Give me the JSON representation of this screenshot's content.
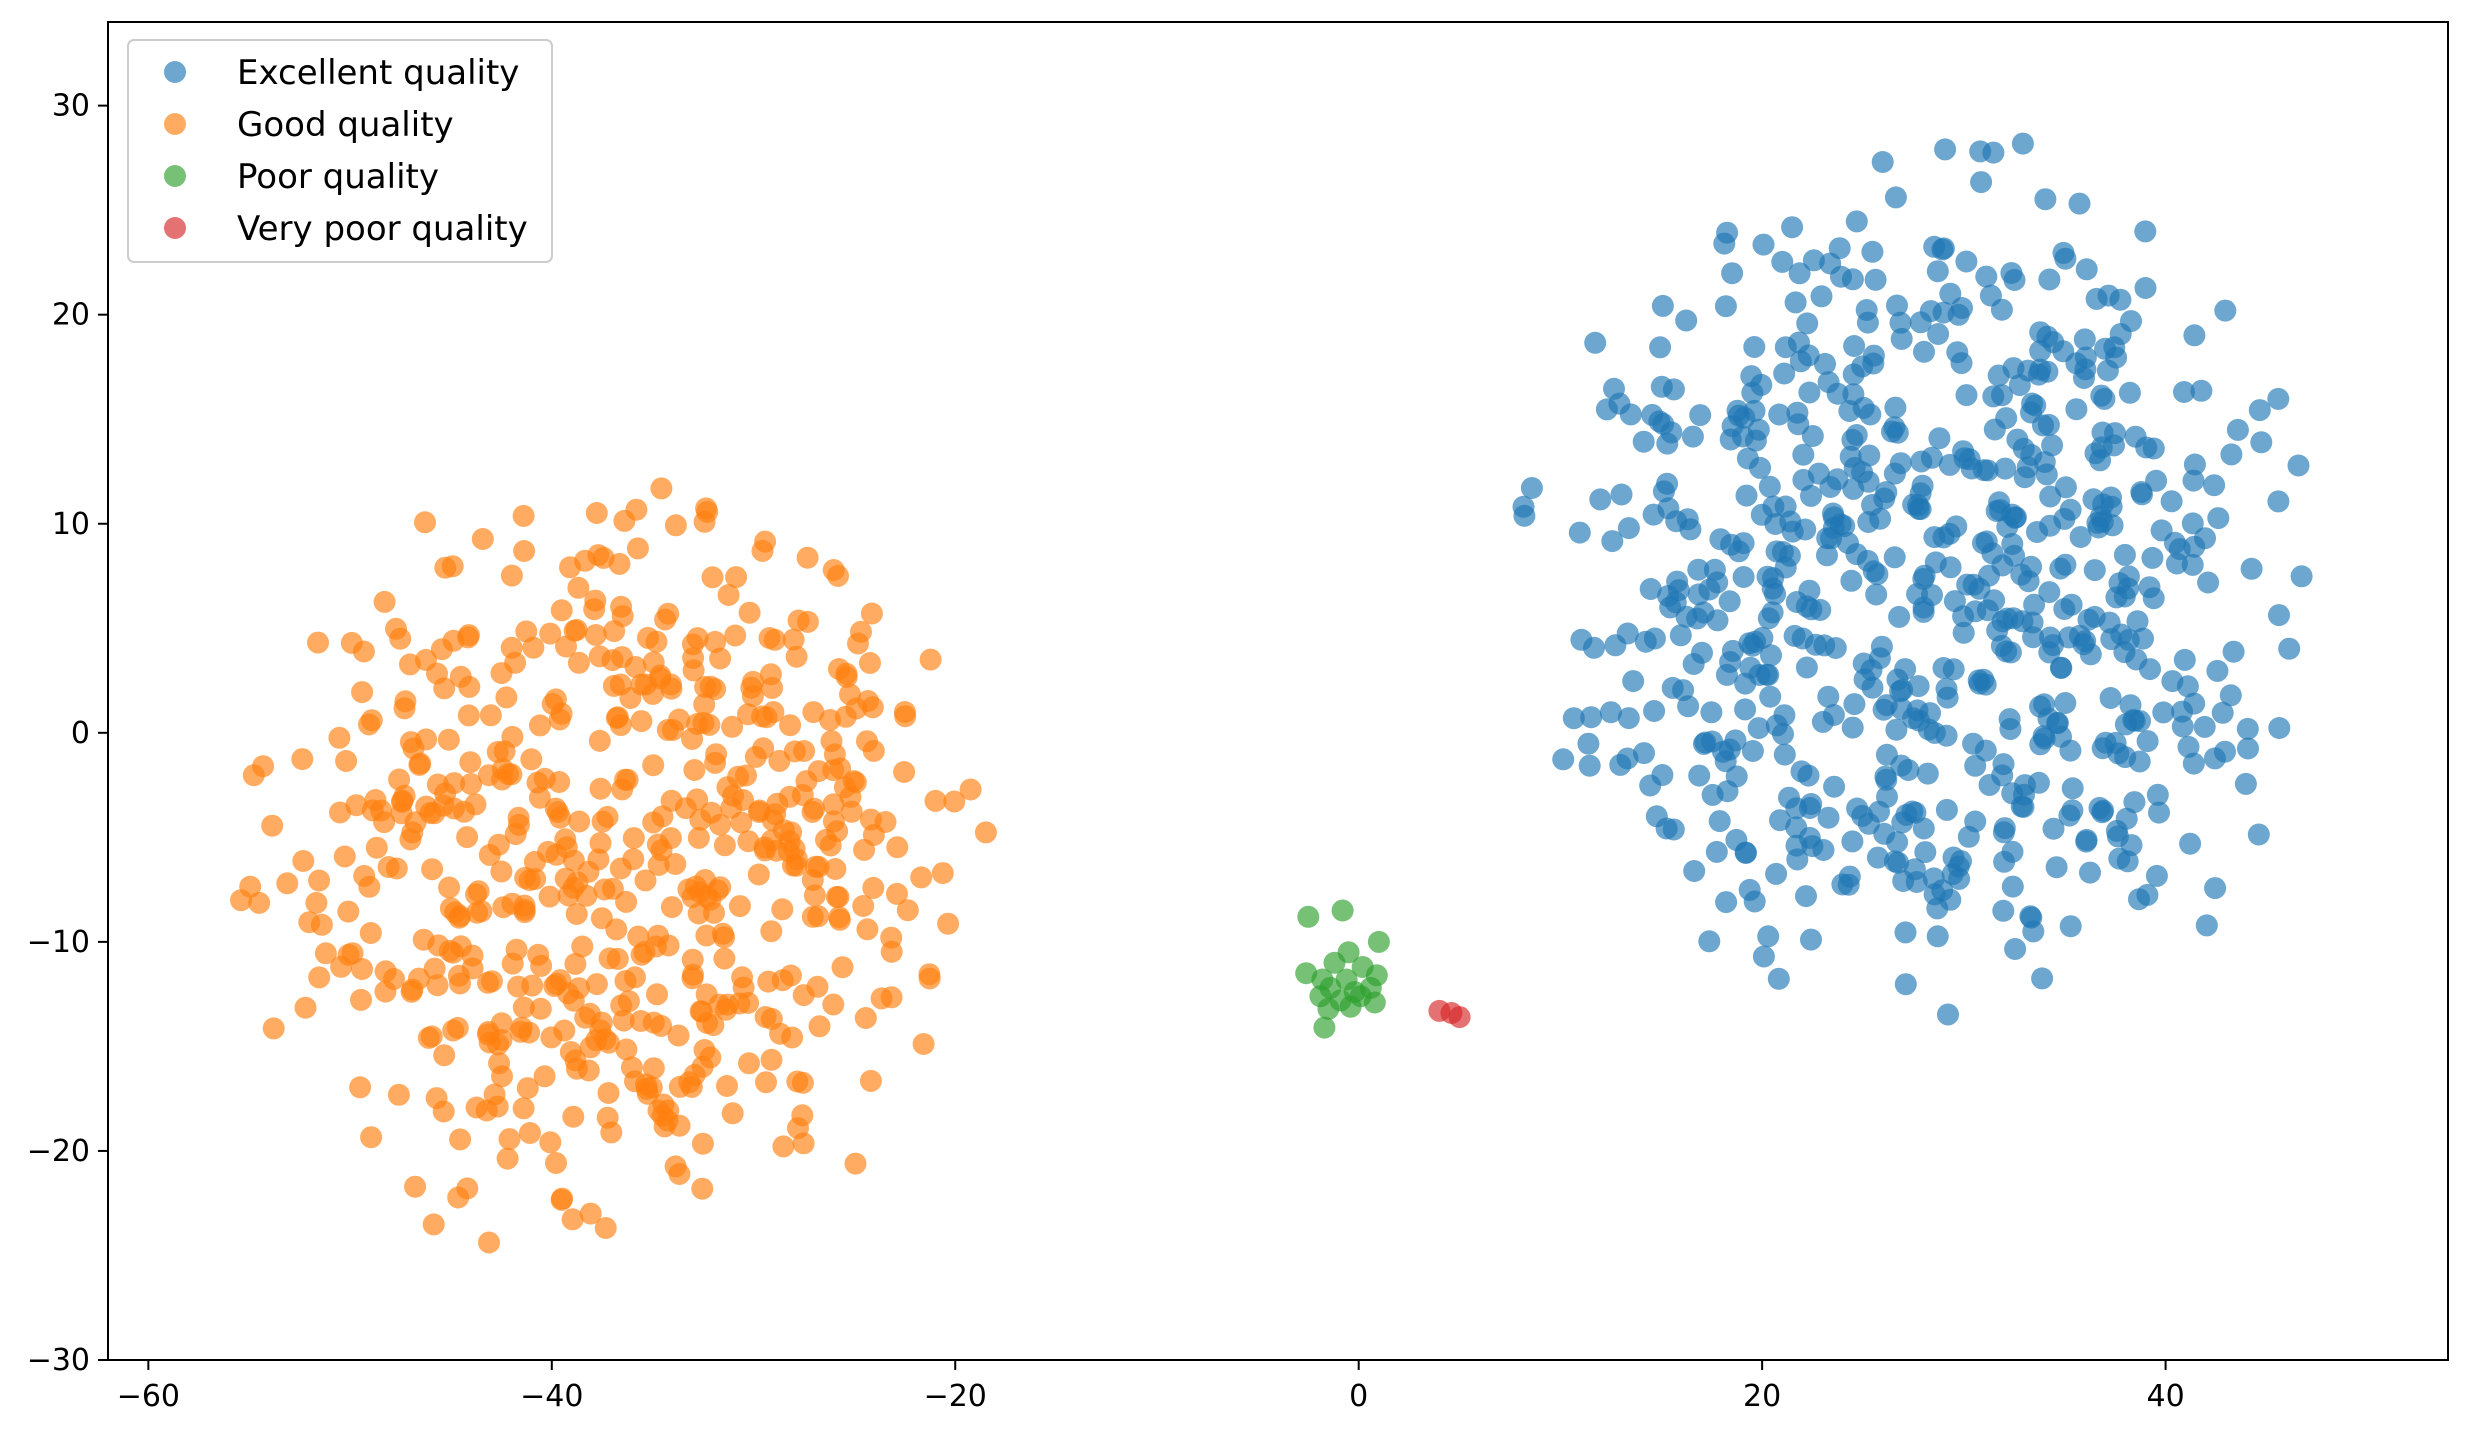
{
  "chart_data": {
    "type": "scatter",
    "title": "",
    "xlabel": "",
    "ylabel": "",
    "xlim": [
      -62,
      54
    ],
    "ylim": [
      -30,
      34
    ],
    "xticks": [
      -60,
      -40,
      -20,
      0,
      20,
      40
    ],
    "yticks": [
      -30,
      -20,
      -10,
      0,
      10,
      20,
      30
    ],
    "xtick_labels": [
      "−60",
      "−40",
      "−20",
      "0",
      "20",
      "40"
    ],
    "ytick_labels": [
      "−30",
      "−20",
      "−10",
      "0",
      "10",
      "20",
      "30"
    ],
    "grid": false,
    "legend_position": "top-left",
    "series": [
      {
        "name": "Excellent quality",
        "color": "#1f77b4",
        "cluster": {
          "cx": 28,
          "cy": 7,
          "rx": 21,
          "ry": 23,
          "count": 700,
          "seed": 11
        }
      },
      {
        "name": "Good quality",
        "color": "#ff7f0e",
        "cluster": {
          "cx": -37,
          "cy": -6,
          "rx": 20,
          "ry": 20,
          "count": 600,
          "seed": 23
        }
      },
      {
        "name": "Poor quality",
        "color": "#2ca02c",
        "points": [
          [
            -2.5,
            -8.8
          ],
          [
            -0.8,
            -8.5
          ],
          [
            1.0,
            -10.0
          ],
          [
            -0.5,
            -10.5
          ],
          [
            -1.2,
            -11.0
          ],
          [
            0.2,
            -11.2
          ],
          [
            -2.6,
            -11.5
          ],
          [
            -1.8,
            -11.8
          ],
          [
            -0.6,
            -11.8
          ],
          [
            0.9,
            -11.6
          ],
          [
            -1.4,
            -12.2
          ],
          [
            -0.2,
            -12.4
          ],
          [
            0.6,
            -12.2
          ],
          [
            -1.9,
            -12.6
          ],
          [
            -0.9,
            -12.8
          ],
          [
            0.1,
            -12.6
          ],
          [
            0.8,
            -12.9
          ],
          [
            -1.5,
            -13.2
          ],
          [
            -0.4,
            -13.1
          ],
          [
            -1.7,
            -14.1
          ]
        ]
      },
      {
        "name": "Very poor quality",
        "color": "#d62728",
        "points": [
          [
            4.0,
            -13.3
          ],
          [
            4.6,
            -13.4
          ],
          [
            5.0,
            -13.6
          ]
        ]
      }
    ]
  }
}
